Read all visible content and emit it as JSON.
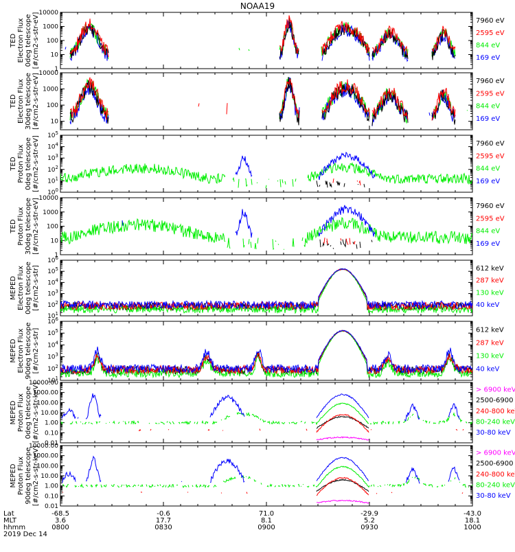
{
  "title": "NOAA19",
  "colors": {
    "black": "#000000",
    "red": "#ff0000",
    "green": "#00ee00",
    "blue": "#0000ff",
    "magenta": "#ff00ff"
  },
  "time_axis": {
    "row_labels": [
      "Lat",
      "MLT",
      "hhmm"
    ],
    "ticks": [
      {
        "lat": "-68.5",
        "mlt": "3.6",
        "hhmm": "0800"
      },
      {
        "lat": "-0.6",
        "mlt": "17.7",
        "hhmm": "0830"
      },
      {
        "lat": "71.0",
        "mlt": "8.1",
        "hhmm": "0900"
      },
      {
        "lat": "-29.9",
        "mlt": "5.2",
        "hhmm": "0930"
      },
      {
        "lat": "-43.0",
        "mlt": "18.1",
        "hhmm": "1000"
      }
    ],
    "date": "2019 Dec 14"
  },
  "chart_data": [
    {
      "type": "line",
      "ylabel": [
        "TED",
        "Electron Flux",
        "0deg telescope",
        "[#/cm2-s-str-eV]"
      ],
      "ylog": true,
      "ylim": [
        1,
        10000
      ],
      "yticks": [
        "1",
        "10",
        "100",
        "1000",
        "10000"
      ],
      "legend": [
        {
          "label": "7960 eV",
          "color": "#000000"
        },
        {
          "label": "2595 eV",
          "color": "#ff0000"
        },
        {
          "label": "844 eV",
          "color": "#00ee00"
        },
        {
          "label": "169 eV",
          "color": "#0000ff"
        }
      ]
    },
    {
      "type": "line",
      "ylabel": [
        "TED",
        "Electron Flux",
        "30deg telescope",
        "[#/cm2-s-str-eV]"
      ],
      "ylog": true,
      "ylim": [
        3,
        10000
      ],
      "yticks": [
        "10",
        "100",
        "1000",
        "10000"
      ],
      "legend": [
        {
          "label": "7960 eV",
          "color": "#000000"
        },
        {
          "label": "2595 eV",
          "color": "#ff0000"
        },
        {
          "label": "844 eV",
          "color": "#00ee00"
        },
        {
          "label": "169 eV",
          "color": "#0000ff"
        }
      ]
    },
    {
      "type": "line",
      "ylabel": [
        "TED",
        "Proton Flux",
        "0deg telescope",
        "[#/cm2-s-str-eV]"
      ],
      "ylog": true,
      "ylim": [
        1,
        100000
      ],
      "yticks": [
        "10^0",
        "10^1",
        "10^2",
        "10^3",
        "10^4",
        "10^5"
      ],
      "legend": [
        {
          "label": "7960 eV",
          "color": "#000000"
        },
        {
          "label": "2595 eV",
          "color": "#ff0000"
        },
        {
          "label": "844 eV",
          "color": "#00ee00"
        },
        {
          "label": "169 eV",
          "color": "#0000ff"
        }
      ]
    },
    {
      "type": "line",
      "ylabel": [
        "TED",
        "Proton Flux",
        "30deg telescope",
        "[#/cm2-s-str-eV]"
      ],
      "ylog": true,
      "ylim": [
        1,
        10000
      ],
      "yticks": [
        "1",
        "10",
        "100",
        "1000",
        "10000"
      ],
      "legend": [
        {
          "label": "7960 eV",
          "color": "#000000"
        },
        {
          "label": "2595 eV",
          "color": "#ff0000"
        },
        {
          "label": "844 eV",
          "color": "#00ee00"
        },
        {
          "label": "169 eV",
          "color": "#0000ff"
        }
      ]
    },
    {
      "type": "line",
      "ylabel": [
        "MEPED",
        "Electron Flux",
        "0deg telescope",
        "[#/cm2-s-str]"
      ],
      "ylog": true,
      "ylim": [
        10,
        1000000
      ],
      "yticks": [
        "10^1",
        "10^2",
        "10^3",
        "10^4",
        "10^5",
        "10^6"
      ],
      "legend": [
        {
          "label": "612 keV",
          "color": "#000000"
        },
        {
          "label": "287 keV",
          "color": "#ff0000"
        },
        {
          "label": "130 keV",
          "color": "#00ee00"
        },
        {
          "label": "40 keV",
          "color": "#0000ff"
        }
      ]
    },
    {
      "type": "line",
      "ylabel": [
        "MEPED",
        "Electron Flux",
        "90deg telescope",
        "[#/cm2-s-str]"
      ],
      "ylog": true,
      "ylim": [
        10,
        1000000
      ],
      "yticks": [
        "10^1",
        "10^2",
        "10^3",
        "10^4",
        "10^5",
        "10^6"
      ],
      "legend": [
        {
          "label": "612 keV",
          "color": "#000000"
        },
        {
          "label": "287 keV",
          "color": "#ff0000"
        },
        {
          "label": "130 keV",
          "color": "#00ee00"
        },
        {
          "label": "40 keV",
          "color": "#0000ff"
        }
      ]
    },
    {
      "type": "line",
      "ylabel": [
        "MEPED",
        "Proton Flux",
        "0deg telescope",
        "[#/cm2-s-str-keV]"
      ],
      "ylog": true,
      "ylim": [
        0.01,
        10000
      ],
      "yticks": [
        "0.01",
        "0.10",
        "1.00",
        "10.00",
        "100.00",
        "1000.00",
        "10000.00"
      ],
      "legend": [
        {
          "label": "> 6900 keV",
          "color": "#ff00ff"
        },
        {
          "label": "2500-6900",
          "color": "#000000"
        },
        {
          "label": "240-800 keV",
          "color": "#ff0000"
        },
        {
          "label": "80-240 keV",
          "color": "#00ee00"
        },
        {
          "label": "30-80 keV",
          "color": "#0000ff"
        }
      ]
    },
    {
      "type": "line",
      "ylabel": [
        "MEPED",
        "Proton Flux",
        "90deg telescope",
        "[#/cm2-s-str-keV]"
      ],
      "ylog": true,
      "ylim": [
        0.01,
        10000
      ],
      "yticks": [
        "0.01",
        "0.10",
        "1.00",
        "10.00",
        "100.00",
        "1000.00",
        "10000.00"
      ],
      "legend": [
        {
          "label": "> 6900 keV",
          "color": "#ff00ff"
        },
        {
          "label": "2500-6900",
          "color": "#000000"
        },
        {
          "label": "240-800 keV",
          "color": "#ff0000"
        },
        {
          "label": "80-240 keV",
          "color": "#00ee00"
        },
        {
          "label": "30-80 keV",
          "color": "#0000ff"
        }
      ]
    }
  ]
}
